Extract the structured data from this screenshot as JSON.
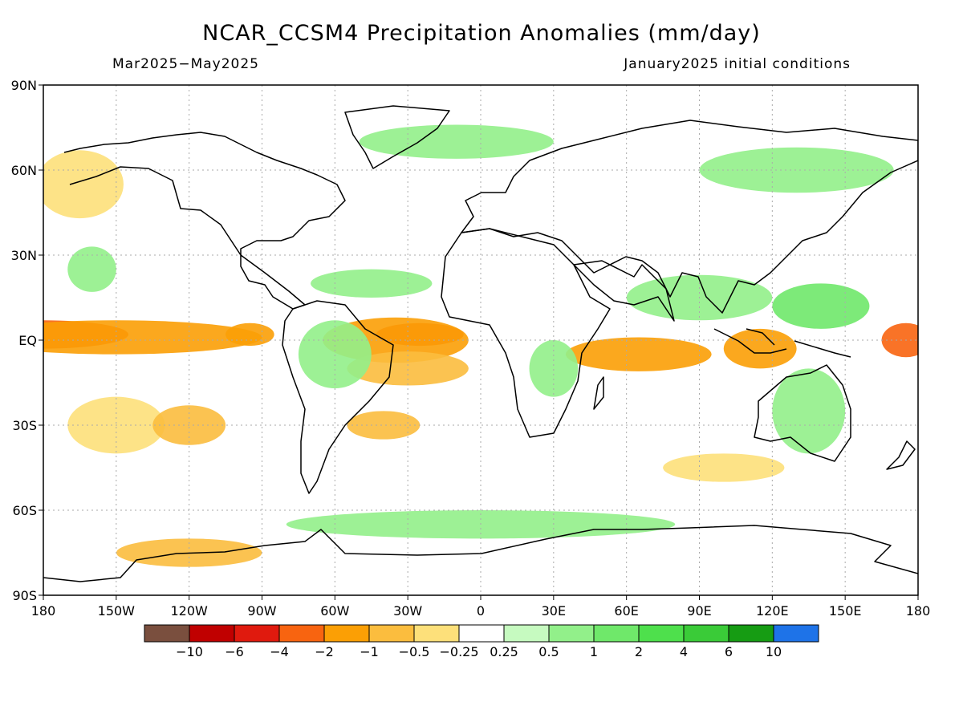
{
  "title": "NCAR_CCSM4 Precipitation Anomalies (mm/day)",
  "period": "Mar2025−May2025",
  "init": "January2025 initial conditions",
  "lat_labels": [
    "90N",
    "60N",
    "30N",
    "EQ",
    "30S",
    "60S",
    "90S"
  ],
  "lon_labels": [
    "180",
    "150W",
    "120W",
    "90W",
    "60W",
    "30W",
    "0",
    "30E",
    "60E",
    "90E",
    "120E",
    "150E",
    "180"
  ],
  "colorbar": {
    "colors": [
      "#7a4f3e",
      "#c00000",
      "#e01a0e",
      "#f86410",
      "#fb9f05",
      "#fbbd3e",
      "#fde07a",
      "#ffffff",
      "#c6fac0",
      "#92f08a",
      "#6fe86a",
      "#4ee04c",
      "#3acb38",
      "#169c13",
      "#1e73e8"
    ],
    "labels": [
      "−10",
      "−6",
      "−4",
      "−2",
      "−1",
      "−0.5",
      "−0.25",
      "0.25",
      "0.5",
      "1",
      "2",
      "4",
      "6",
      "10"
    ]
  },
  "anomaly_regions": [
    {
      "lon": -180,
      "lat": 2,
      "dlon": 35,
      "dlat": 5,
      "value": -4
    },
    {
      "lon": -150,
      "lat": 1,
      "dlon": 60,
      "dlat": 6,
      "value": -2
    },
    {
      "lon": -95,
      "lat": 2,
      "dlon": 10,
      "dlat": 4,
      "value": -2
    },
    {
      "lon": -25,
      "lat": 2,
      "dlon": 18,
      "dlat": 4,
      "value": -4
    },
    {
      "lon": -35,
      "lat": 0,
      "dlon": 30,
      "dlat": 8,
      "value": -2
    },
    {
      "lon": -30,
      "lat": -10,
      "dlon": 25,
      "dlat": 6,
      "value": -1
    },
    {
      "lon": 65,
      "lat": -5,
      "dlon": 30,
      "dlat": 6,
      "value": -2
    },
    {
      "lon": 115,
      "lat": -3,
      "dlon": 15,
      "dlat": 7,
      "value": -2
    },
    {
      "lon": 175,
      "lat": 0,
      "dlon": 10,
      "dlat": 6,
      "value": -4
    },
    {
      "lon": -165,
      "lat": 55,
      "dlon": 18,
      "dlat": 12,
      "value": -0.5
    },
    {
      "lon": -150,
      "lat": -30,
      "dlon": 20,
      "dlat": 10,
      "value": -0.5
    },
    {
      "lon": -120,
      "lat": -30,
      "dlon": 15,
      "dlat": 7,
      "value": -1
    },
    {
      "lon": -40,
      "lat": -30,
      "dlon": 15,
      "dlat": 5,
      "value": -1
    },
    {
      "lon": 100,
      "lat": -45,
      "dlon": 25,
      "dlat": 5,
      "value": -0.5
    },
    {
      "lon": -120,
      "lat": -75,
      "dlon": 30,
      "dlat": 5,
      "value": -1
    },
    {
      "lon": -160,
      "lat": 25,
      "dlon": 10,
      "dlat": 8,
      "value": 0.5
    },
    {
      "lon": 90,
      "lat": 15,
      "dlon": 30,
      "dlat": 8,
      "value": 0.5
    },
    {
      "lon": 140,
      "lat": 12,
      "dlon": 20,
      "dlat": 8,
      "value": 1
    },
    {
      "lon": 135,
      "lat": -25,
      "dlon": 15,
      "dlat": 15,
      "value": 0.5
    },
    {
      "lon": -60,
      "lat": -5,
      "dlon": 15,
      "dlat": 12,
      "value": 0.5
    },
    {
      "lon": -45,
      "lat": 20,
      "dlon": 25,
      "dlat": 5,
      "value": 0.5
    },
    {
      "lon": 30,
      "lat": -10,
      "dlon": 10,
      "dlat": 10,
      "value": 0.5
    },
    {
      "lon": 0,
      "lat": -65,
      "dlon": 80,
      "dlat": 5,
      "value": 0.5
    },
    {
      "lon": -10,
      "lat": 70,
      "dlon": 40,
      "dlat": 6,
      "value": 0.5
    },
    {
      "lon": 130,
      "lat": 60,
      "dlon": 40,
      "dlat": 8,
      "value": 0.5
    }
  ]
}
